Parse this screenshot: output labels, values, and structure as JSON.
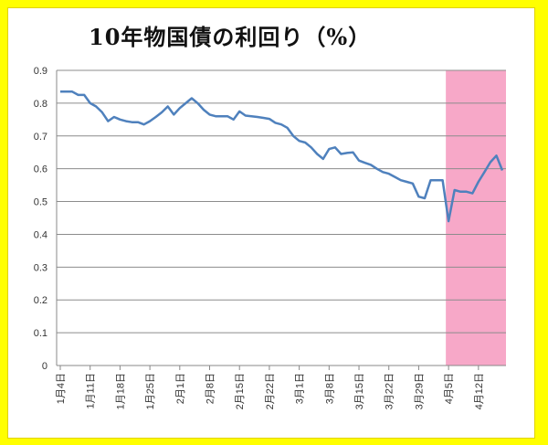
{
  "chart_data": {
    "type": "line",
    "title": "10年物国債の利回り（%）",
    "xlabel": "",
    "ylabel": "",
    "ylim": [
      0,
      0.9
    ],
    "yticks": [
      "0",
      "0.1",
      "0.2",
      "0.3",
      "0.4",
      "0.5",
      "0.6",
      "0.7",
      "0.8",
      "0.9"
    ],
    "xticks": [
      "1月4日",
      "1月11日",
      "1月18日",
      "1月25日",
      "2月1日",
      "2月8日",
      "2月15日",
      "2月22日",
      "3月1日",
      "3月8日",
      "3月15日",
      "3月22日",
      "3月29日",
      "4月5日",
      "4月12日"
    ],
    "grid": "horizontal",
    "legend": "none",
    "line_color": "#4f81bd",
    "highlight": {
      "from": "4月4日",
      "to": "4月16日",
      "color": "#f7a8c8"
    },
    "series": [
      {
        "x": [
          "1月4日",
          "1月5日",
          "1月6日",
          "1月7日",
          "1月8日",
          "1月11日",
          "1月12日",
          "1月13日",
          "1月14日",
          "1月15日",
          "1月18日",
          "1月19日",
          "1月20日",
          "1月21日",
          "1月22日",
          "1月25日",
          "1月26日",
          "1月27日",
          "1月28日",
          "1月29日",
          "2月1日",
          "2月2日",
          "2月3日",
          "2月4日",
          "2月5日",
          "2月8日",
          "2月9日",
          "2月10日",
          "2月11日",
          "2月12日",
          "2月15日",
          "2月16日",
          "2月17日",
          "2月18日",
          "2月19日",
          "2月22日",
          "2月23日",
          "2月24日",
          "2月25日",
          "2月26日",
          "3月1日",
          "3月2日",
          "3月3日",
          "3月4日",
          "3月5日",
          "3月8日",
          "3月9日",
          "3月10日",
          "3月11日",
          "3月12日",
          "3月15日",
          "3月16日",
          "3月17日",
          "3月18日",
          "3月19日",
          "3月22日",
          "3月23日",
          "3月24日",
          "3月25日",
          "3月26日",
          "3月29日",
          "3月30日",
          "3月31日",
          "4月1日",
          "4月2日",
          "4月5日",
          "4月6日",
          "4月7日",
          "4月8日",
          "4月9日",
          "4月12日",
          "4月13日",
          "4月14日",
          "4月15日",
          "4月16日"
        ],
        "values": [
          0.835,
          0.835,
          0.835,
          0.825,
          0.825,
          0.8,
          0.79,
          0.772,
          0.745,
          0.758,
          0.75,
          0.745,
          0.742,
          0.742,
          0.735,
          0.745,
          0.758,
          0.772,
          0.79,
          0.765,
          0.785,
          0.8,
          0.815,
          0.8,
          0.78,
          0.765,
          0.76,
          0.76,
          0.76,
          0.75,
          0.775,
          0.762,
          0.76,
          0.758,
          0.755,
          0.752,
          0.74,
          0.735,
          0.725,
          0.7,
          0.685,
          0.68,
          0.665,
          0.645,
          0.63,
          0.66,
          0.665,
          0.645,
          0.648,
          0.65,
          0.625,
          0.618,
          0.612,
          0.6,
          0.59,
          0.585,
          0.575,
          0.565,
          0.56,
          0.555,
          0.515,
          0.51,
          0.565,
          0.565,
          0.565,
          0.44,
          0.535,
          0.53,
          0.53,
          0.525,
          0.56,
          0.59,
          0.62,
          0.64,
          0.595
        ]
      }
    ]
  }
}
